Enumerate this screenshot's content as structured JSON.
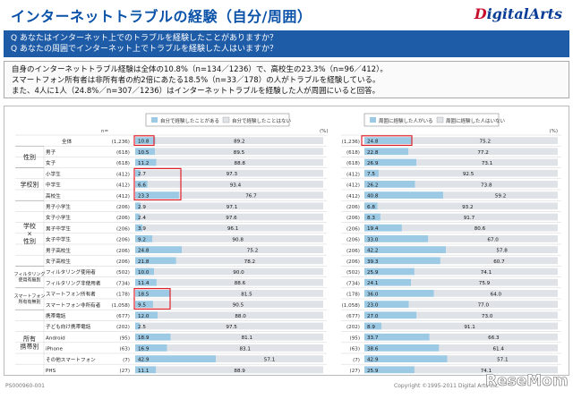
{
  "header": {
    "title": "インターネットトラブルの経験（自分/周囲）",
    "logo": "DigitalArts",
    "logo_first": "D",
    "logo_rest": "igitalArts"
  },
  "questions": [
    "Q あなたはインターネット上でのトラブルを経験したことがありますか？",
    "Q あなたの周囲でインターネット上でトラブルを経験した人はいますか？"
  ],
  "summary": [
    "自身のインターネットトラブル経験は全体の10.8%（n=134／1236）で、高校生の23.3%（n=96／412）。",
    "スマートフォン所有者は非所有者の約2倍にあたる18.5%（n=33／178）の人がトラブルを経験している。",
    "また、4人に1人（24.8%／n=307／1236）はインターネットトラブルを経験した人が周囲にいると回答。"
  ],
  "colors": {
    "header_blue": "#0a52a8",
    "bar_blue": "#9cc9e4",
    "bar_gray": "#dfe3e8",
    "highlight_red": "#e0212b"
  },
  "chart_data": [
    {
      "type": "bar",
      "subtype": "stacked-horizontal-100",
      "legend": [
        "自分で経験したことがある",
        "自分で経験したことはない"
      ],
      "n_label": "n=",
      "unit": "(%)",
      "groups": [
        "性別",
        "学校別",
        "学校×性別",
        "フィルタリング使用有無別",
        "スマートフォン所有有無別",
        "所有携帯別"
      ],
      "categories": [
        "全体",
        "男子",
        "女子",
        "小学生",
        "中学生",
        "高校生",
        "男子小学生",
        "女子小学生",
        "男子中学生",
        "女子中学生",
        "男子高校生",
        "女子高校生",
        "フィルタリング使用者",
        "フィルタリング非使用者",
        "スマートフォン所有者",
        "スマートフォン非所有者",
        "携帯電話",
        "子ども向け携帯電話",
        "Android",
        "iPhone",
        "その他スマートフォン",
        "PHS"
      ],
      "n": [
        "(1,236)",
        "(618)",
        "(618)",
        "(412)",
        "(412)",
        "(412)",
        "(206)",
        "(206)",
        "(206)",
        "(206)",
        "(206)",
        "(206)",
        "(502)",
        "(734)",
        "(178)",
        "(1,058)",
        "(677)",
        "(202)",
        "(95)",
        "(63)",
        "(7)",
        "(27)"
      ],
      "series": [
        {
          "name": "自分で経験したことがある",
          "values": [
            10.8,
            10.5,
            11.2,
            2.7,
            6.6,
            23.3,
            2.9,
            2.4,
            3.9,
            9.2,
            24.8,
            21.8,
            10.0,
            11.4,
            18.5,
            9.5,
            12.0,
            2.5,
            18.9,
            16.9,
            42.9,
            11.1
          ]
        },
        {
          "name": "自分で経験したことはない",
          "values": [
            89.2,
            89.5,
            88.8,
            97.3,
            93.4,
            76.7,
            97.1,
            97.6,
            96.1,
            90.8,
            75.2,
            78.2,
            90.0,
            88.6,
            81.5,
            90.5,
            88.0,
            97.5,
            81.1,
            83.1,
            57.1,
            88.9
          ]
        }
      ],
      "highlights": [
        "全体",
        "小学生",
        "中学生",
        "高校生",
        "スマートフォン所有者"
      ],
      "xlim": [
        0,
        100
      ]
    },
    {
      "type": "bar",
      "subtype": "stacked-horizontal-100",
      "legend": [
        "周囲に経験した人がいる",
        "周囲に経験した人はいない"
      ],
      "n_label": "n=",
      "unit": "(%)",
      "n": [
        "(1,236)",
        "(618)",
        "(618)",
        "(412)",
        "(412)",
        "(412)",
        "(206)",
        "(206)",
        "(206)",
        "(206)",
        "(206)",
        "(206)",
        "(502)",
        "(734)",
        "(178)",
        "(1,058)",
        "(677)",
        "(202)",
        "(95)",
        "(63)",
        "(7)",
        "(27)"
      ],
      "series": [
        {
          "name": "周囲に経験した人がいる",
          "values": [
            24.8,
            22.8,
            26.9,
            7.5,
            26.2,
            40.8,
            6.8,
            8.3,
            19.4,
            33.0,
            42.2,
            39.3,
            25.9,
            24.1,
            36.0,
            23.0,
            27.0,
            8.9,
            33.7,
            38.6,
            42.9,
            25.9
          ]
        },
        {
          "name": "周囲に経験した人はいない",
          "values": [
            75.2,
            77.2,
            73.1,
            92.5,
            73.8,
            59.2,
            93.2,
            91.7,
            80.6,
            67.0,
            57.8,
            60.7,
            74.1,
            75.9,
            64.0,
            77.0,
            73.0,
            91.1,
            66.3,
            61.4,
            57.1,
            74.1
          ]
        }
      ],
      "highlights": [
        "全体"
      ],
      "xlim": [
        0,
        100
      ]
    }
  ],
  "footer": {
    "code": "PS000960-001",
    "copyright": "Copyright ©1995-2011 Digital Arts Inc.",
    "watermark": "ReseMom"
  }
}
